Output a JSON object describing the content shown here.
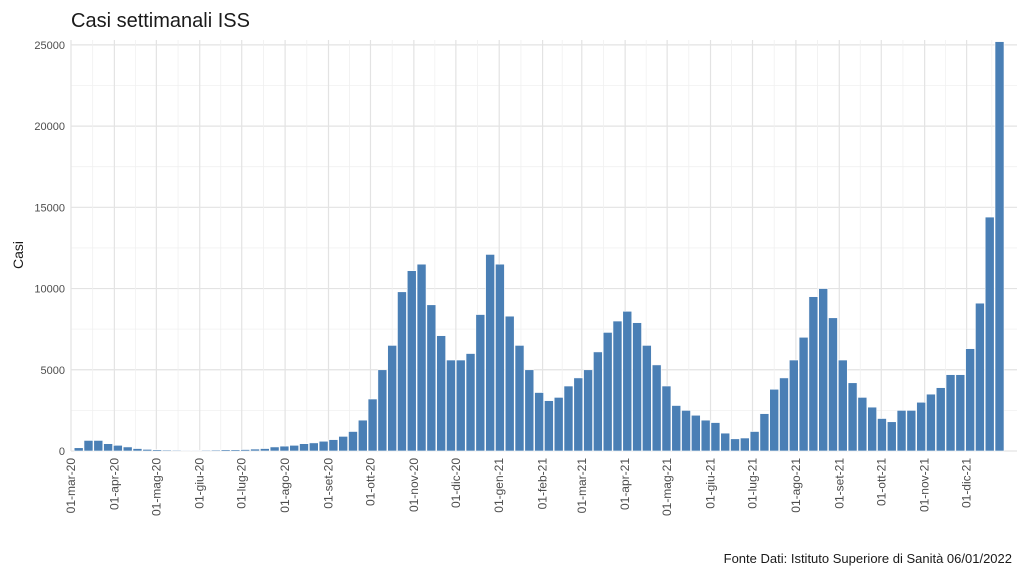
{
  "chart_data": {
    "type": "bar",
    "title": "Casi settimanali ISS",
    "ylabel": "Casi",
    "xlabel": "",
    "source": "Fonte Dati: Istituto Superiore di Sanità 06/01/2022",
    "ylim": [
      0,
      25300
    ],
    "yticks": [
      0,
      5000,
      10000,
      15000,
      20000,
      25000
    ],
    "ytick_labels": [
      "0",
      "5000",
      "10000",
      "15000",
      "20000",
      "25000"
    ],
    "grid": true,
    "bar_color": "#4a7fb5",
    "x_start_date": "2020-03-01",
    "x_end_date": "2022-01-06",
    "xtick_labels": [
      {
        "date": "2020-03-01",
        "label": "01-mar-20"
      },
      {
        "date": "2020-04-01",
        "label": "01-apr-20"
      },
      {
        "date": "2020-05-01",
        "label": "01-mag-20"
      },
      {
        "date": "2020-06-01",
        "label": "01-giu-20"
      },
      {
        "date": "2020-07-01",
        "label": "01-lug-20"
      },
      {
        "date": "2020-08-01",
        "label": "01-ago-20"
      },
      {
        "date": "2020-09-01",
        "label": "01-set-20"
      },
      {
        "date": "2020-10-01",
        "label": "01-ott-20"
      },
      {
        "date": "2020-11-01",
        "label": "01-nov-20"
      },
      {
        "date": "2020-12-01",
        "label": "01-dic-20"
      },
      {
        "date": "2021-01-01",
        "label": "01-gen-21"
      },
      {
        "date": "2021-02-01",
        "label": "01-feb-21"
      },
      {
        "date": "2021-03-01",
        "label": "01-mar-21"
      },
      {
        "date": "2021-04-01",
        "label": "01-apr-21"
      },
      {
        "date": "2021-05-01",
        "label": "01-mag-21"
      },
      {
        "date": "2021-06-01",
        "label": "01-giu-21"
      },
      {
        "date": "2021-07-01",
        "label": "01-lug-21"
      },
      {
        "date": "2021-08-01",
        "label": "01-ago-21"
      },
      {
        "date": "2021-09-01",
        "label": "01-set-21"
      },
      {
        "date": "2021-10-01",
        "label": "01-ott-21"
      },
      {
        "date": "2021-11-01",
        "label": "01-nov-21"
      },
      {
        "date": "2021-12-01",
        "label": "01-dic-21"
      }
    ],
    "first_week_start": "2020-03-03",
    "week_days": 7,
    "values": [
      200,
      650,
      650,
      450,
      350,
      250,
      150,
      100,
      80,
      60,
      50,
      40,
      40,
      50,
      60,
      80,
      80,
      90,
      120,
      150,
      250,
      300,
      350,
      450,
      500,
      600,
      700,
      900,
      1200,
      1900,
      3200,
      5000,
      6500,
      9800,
      11100,
      11500,
      9000,
      7100,
      5600,
      5600,
      6000,
      8400,
      12100,
      11500,
      8300,
      6500,
      5000,
      3600,
      3100,
      3300,
      4000,
      4500,
      5000,
      6100,
      7300,
      8000,
      8600,
      7900,
      6500,
      5300,
      4000,
      2800,
      2500,
      2200,
      1900,
      1750,
      1100,
      750,
      800,
      1200,
      2300,
      3800,
      4500,
      5600,
      7000,
      9500,
      10000,
      8200,
      5600,
      4200,
      3300,
      2700,
      2000,
      1800,
      2500,
      2500,
      3000,
      3500,
      3900,
      4700,
      4700,
      6300,
      9100,
      14400,
      25200
    ]
  }
}
